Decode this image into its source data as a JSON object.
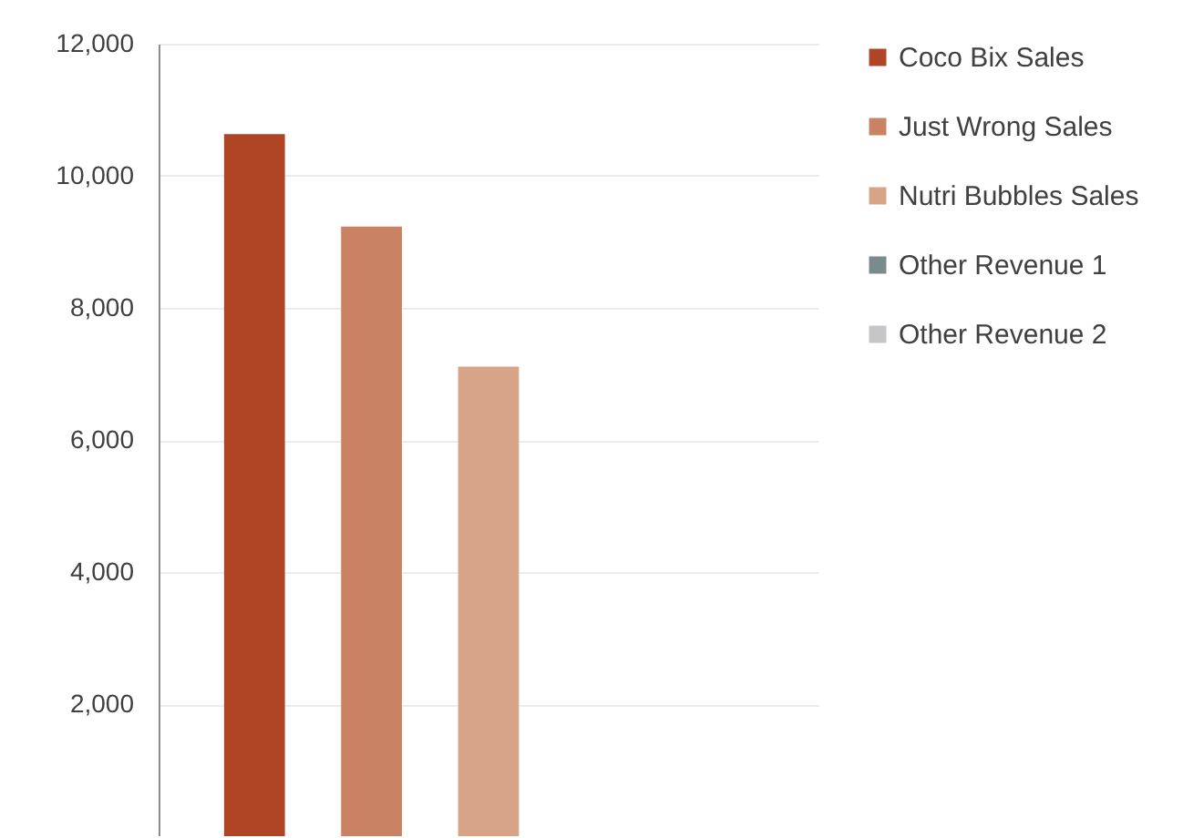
{
  "chart_data": {
    "type": "bar",
    "categories": [
      null
    ],
    "series": [
      {
        "name": "Coco Bix Sales",
        "color": "#b04526",
        "values": [
          10630
        ]
      },
      {
        "name": "Just Wrong Sales",
        "color": "#c98263",
        "values": [
          9230
        ]
      },
      {
        "name": "Nutri Bubbles Sales",
        "color": "#d8a488",
        "values": [
          7110
        ]
      },
      {
        "name": "Other Revenue 1",
        "color": "#7b8a8c",
        "values": [
          null
        ]
      },
      {
        "name": "Other Revenue 2",
        "color": "#c6c6c8",
        "values": [
          null
        ]
      }
    ],
    "ylim": [
      0,
      12000
    ],
    "yticks": [
      {
        "value": 2000,
        "label": "2,000"
      },
      {
        "value": 4000,
        "label": "4,000"
      },
      {
        "value": 6000,
        "label": "6,000"
      },
      {
        "value": 8000,
        "label": "8,000"
      },
      {
        "value": 10000,
        "label": "10,000"
      },
      {
        "value": 12000,
        "label": "12,000"
      }
    ],
    "grid": "y",
    "legend": "right",
    "tick_labels": "y"
  }
}
